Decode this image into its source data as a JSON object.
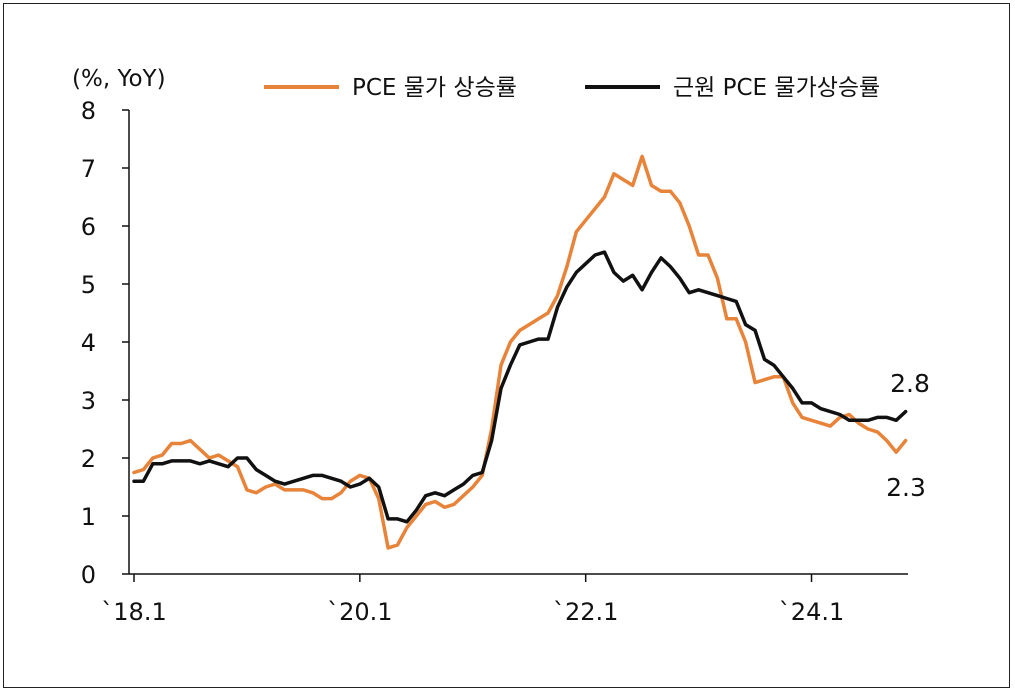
{
  "chart_data": {
    "type": "line",
    "title": "",
    "ylabel": "(%, YoY)",
    "xlabel": "",
    "ylim": [
      0,
      8
    ],
    "yticks": [
      "0",
      "1",
      "2",
      "3",
      "4",
      "5",
      "6",
      "7",
      "8"
    ],
    "xticks": [
      {
        "label": "`18.1",
        "month_index": 0
      },
      {
        "label": "`20.1",
        "month_index": 24
      },
      {
        "label": "`22.1",
        "month_index": 48
      },
      {
        "label": "`24.1",
        "month_index": 72
      }
    ],
    "x_start": "2018-01",
    "x_end": "2024-10",
    "legend_position": "top",
    "series": [
      {
        "name": "PCE 물가 상승률",
        "color": "#E8833A",
        "end_label": "2.3",
        "values": [
          1.75,
          1.8,
          2.0,
          2.05,
          2.25,
          2.25,
          2.3,
          2.15,
          2.0,
          2.05,
          1.95,
          1.85,
          1.45,
          1.4,
          1.5,
          1.55,
          1.45,
          1.45,
          1.45,
          1.4,
          1.3,
          1.3,
          1.4,
          1.6,
          1.7,
          1.65,
          1.3,
          0.45,
          0.5,
          0.8,
          1.0,
          1.2,
          1.25,
          1.15,
          1.2,
          1.35,
          1.5,
          1.7,
          2.5,
          3.6,
          4.0,
          4.2,
          4.3,
          4.4,
          4.5,
          4.8,
          5.3,
          5.9,
          6.1,
          6.3,
          6.5,
          6.9,
          6.8,
          6.7,
          7.2,
          6.7,
          6.6,
          6.6,
          6.4,
          6.0,
          5.5,
          5.5,
          5.1,
          4.4,
          4.4,
          4.0,
          3.3,
          3.35,
          3.4,
          3.4,
          2.95,
          2.7,
          2.65,
          2.6,
          2.55,
          2.7,
          2.75,
          2.6,
          2.5,
          2.45,
          2.3,
          2.1,
          2.3
        ]
      },
      {
        "name": "근원 PCE 물가상승률",
        "color": "#111111",
        "end_label": "2.8",
        "values": [
          1.6,
          1.6,
          1.9,
          1.9,
          1.95,
          1.95,
          1.95,
          1.9,
          1.95,
          1.9,
          1.85,
          2.0,
          2.0,
          1.8,
          1.7,
          1.6,
          1.55,
          1.6,
          1.65,
          1.7,
          1.7,
          1.65,
          1.6,
          1.5,
          1.55,
          1.65,
          1.5,
          0.95,
          0.95,
          0.9,
          1.1,
          1.35,
          1.4,
          1.35,
          1.45,
          1.55,
          1.7,
          1.75,
          2.3,
          3.2,
          3.6,
          3.95,
          4.0,
          4.05,
          4.05,
          4.6,
          4.95,
          5.2,
          5.35,
          5.5,
          5.55,
          5.2,
          5.05,
          5.15,
          4.9,
          5.2,
          5.45,
          5.3,
          5.1,
          4.85,
          4.9,
          4.85,
          4.8,
          4.75,
          4.7,
          4.3,
          4.2,
          3.7,
          3.6,
          3.4,
          3.2,
          2.95,
          2.95,
          2.85,
          2.8,
          2.75,
          2.65,
          2.65,
          2.65,
          2.7,
          2.7,
          2.65,
          2.8
        ]
      }
    ]
  }
}
